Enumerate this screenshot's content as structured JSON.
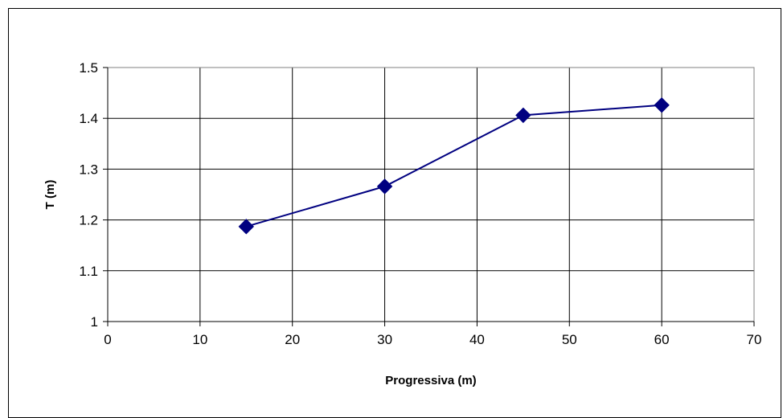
{
  "chart_data": {
    "type": "line",
    "title": "",
    "xlabel": "Progressiva (m)",
    "ylabel": "T (m)",
    "xlim": [
      0,
      70
    ],
    "ylim": [
      1,
      1.5
    ],
    "xticks": [
      0,
      10,
      20,
      30,
      40,
      50,
      60,
      70
    ],
    "xtick_labels": [
      "0",
      "10",
      "20",
      "30",
      "40",
      "50",
      "60",
      "70"
    ],
    "yticks": [
      1,
      1.1,
      1.2,
      1.3,
      1.4,
      1.5
    ],
    "ytick_labels": [
      "1",
      "1.1",
      "1.2",
      "1.3",
      "1.4",
      "1.5"
    ],
    "grid": true,
    "legend": "none",
    "series": [
      {
        "color": "#000080",
        "marker": "diamond",
        "x": [
          15,
          30,
          45,
          60
        ],
        "y": [
          1.187,
          1.266,
          1.406,
          1.426
        ]
      }
    ]
  }
}
